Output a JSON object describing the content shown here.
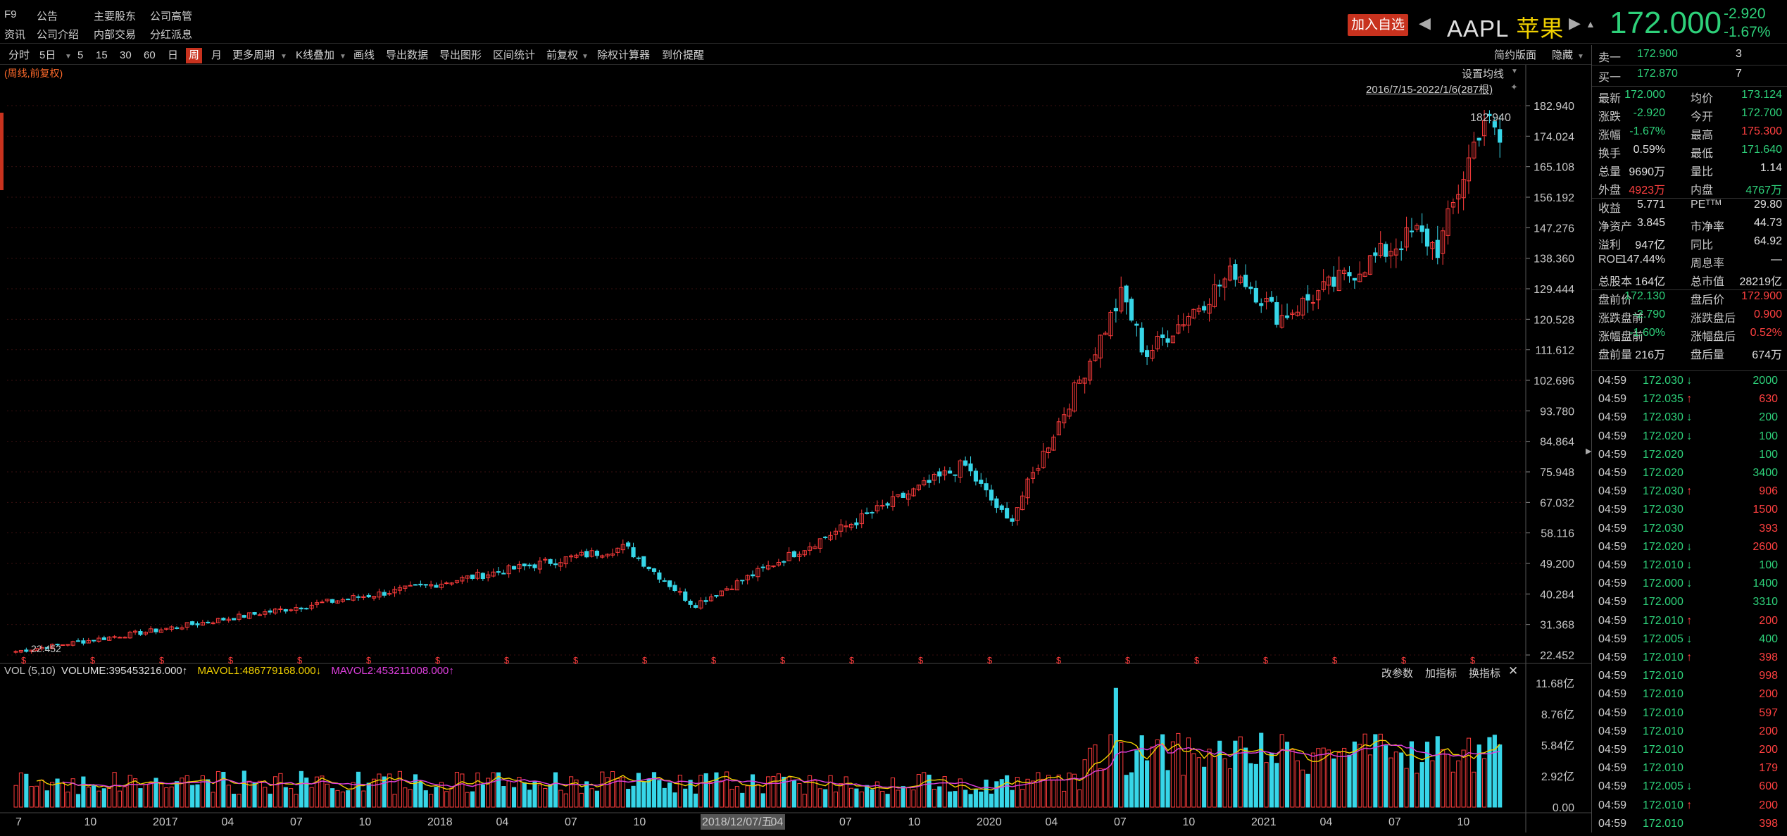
{
  "topbar": {
    "row1": [
      "F9",
      "公告",
      "主要股东",
      "公司高管"
    ],
    "row2": [
      "资讯",
      "公司介绍",
      "内部交易",
      "分红派息"
    ],
    "add_watch": "加入自选",
    "ticker": "AAPL",
    "name_cn": "苹果",
    "price": "172.000",
    "change": "-2.920",
    "change_pct": "-1.67%"
  },
  "toolbar": {
    "items": [
      "分时",
      "5日",
      "5",
      "15",
      "30",
      "60",
      "日",
      "周",
      "月",
      "更多周期",
      "K线叠加",
      "画线",
      "导出数据",
      "导出图形",
      "区间统计",
      "前复权",
      "除权计算器",
      "到价提醒"
    ],
    "active": "周",
    "right": [
      "简约版面",
      "隐藏"
    ]
  },
  "chart": {
    "mode_label": "(周线,前复权)",
    "ma_button": "设置均线",
    "range_label": "2016/7/15-2022/1/6(287根)",
    "high_label": "182.940",
    "low_label": "22.452",
    "y_ticks": [
      "182.940",
      "174.024",
      "165.108",
      "156.192",
      "147.276",
      "138.360",
      "129.444",
      "120.528",
      "111.612",
      "102.696",
      "93.780",
      "84.864",
      "75.948",
      "67.032",
      "58.116",
      "49.200",
      "40.284",
      "31.368",
      "22.452"
    ],
    "vol_legend": {
      "name": "VOL (5,10)",
      "volume": "VOLUME:395453216.000↑",
      "mavol1": "MAVOL1:486779168.000↓",
      "mavol2": "MAVOL2:453211008.000↑"
    },
    "vol_buttons": [
      "改参数",
      "加指标",
      "换指标",
      "✕"
    ],
    "vol_y_ticks": [
      "11.68亿",
      "8.76亿",
      "5.84亿",
      "2.92亿",
      "0.00"
    ],
    "x_labels": [
      "7",
      "10",
      "2017",
      "04",
      "07",
      "10",
      "2018",
      "04",
      "07",
      "10",
      "2018/12/07/五",
      "04",
      "07",
      "10",
      "2020",
      "04",
      "07",
      "10",
      "2021",
      "04",
      "07",
      "10"
    ],
    "dividend_marker": "$",
    "colors": {
      "up": "#ff3c3c",
      "down": "#37d6e8",
      "mavol1": "#f0d000",
      "mavol2": "#e040e0",
      "grid": "#3a1010"
    }
  },
  "chart_data": {
    "type": "candlestick",
    "title": "AAPL 苹果 (周线,前复权)",
    "range": "2016/7/15-2022/1/6",
    "bars": 287,
    "ylim": [
      22.452,
      182.94
    ],
    "anchor_prices": [
      {
        "date": "2016-07",
        "close": 23.5
      },
      {
        "date": "2017-01",
        "close": 29.5
      },
      {
        "date": "2018-01",
        "close": 42.5
      },
      {
        "date": "2018-10",
        "close": 54.0
      },
      {
        "date": "2019-01",
        "close": 37.0
      },
      {
        "date": "2020-01",
        "close": 78.0
      },
      {
        "date": "2020-03",
        "close": 61.0
      },
      {
        "date": "2020-08",
        "close": 128.0
      },
      {
        "date": "2020-09",
        "close": 110.0
      },
      {
        "date": "2021-01",
        "close": 135.0
      },
      {
        "date": "2021-03",
        "close": 121.0
      },
      {
        "date": "2021-09",
        "close": 146.0
      },
      {
        "date": "2021-10",
        "close": 141.0
      },
      {
        "date": "2021-12",
        "close": 180.0
      },
      {
        "date": "2022-01",
        "close": 172.0
      }
    ],
    "volume_ylim": [
      0,
      11.68
    ],
    "volume_unit": "亿"
  },
  "quote": {
    "sell1": {
      "label": "卖一",
      "price": "172.900",
      "qty": "3"
    },
    "buy1": {
      "label": "买一",
      "price": "172.870",
      "qty": "7"
    },
    "rows": [
      [
        {
          "l": "最新",
          "v": "172.000",
          "c": "green"
        },
        {
          "l": "均价",
          "v": "173.124",
          "c": "green"
        }
      ],
      [
        {
          "l": "涨跌",
          "v": "-2.920",
          "c": "green"
        },
        {
          "l": "今开",
          "v": "172.700",
          "c": "green"
        }
      ],
      [
        {
          "l": "涨幅",
          "v": "-1.67%",
          "c": "green"
        },
        {
          "l": "最高",
          "v": "175.300",
          "c": "red"
        }
      ],
      [
        {
          "l": "换手",
          "v": "0.59%",
          "c": "white"
        },
        {
          "l": "最低",
          "v": "171.640",
          "c": "green"
        }
      ],
      [
        {
          "l": "总量",
          "v": "9690万",
          "c": "white"
        },
        {
          "l": "量比",
          "v": "1.14",
          "c": "white"
        }
      ],
      [
        {
          "l": "外盘",
          "v": "4923万",
          "c": "red"
        },
        {
          "l": "内盘",
          "v": "4767万",
          "c": "green"
        }
      ],
      [
        {
          "l": "收益",
          "v": "5.771",
          "c": "white"
        },
        {
          "l": "PEᵀᵀᴹ",
          "v": "29.80",
          "c": "white"
        }
      ],
      [
        {
          "l": "净资产",
          "v": "3.845",
          "c": "white"
        },
        {
          "l": "市净率",
          "v": "44.73",
          "c": "white"
        }
      ],
      [
        {
          "l": "溢利",
          "v": "947亿",
          "c": "white"
        },
        {
          "l": "同比",
          "v": "64.92",
          "c": "white"
        }
      ],
      [
        {
          "l": "ROE",
          "v": "147.44%",
          "c": "white"
        },
        {
          "l": "周息率",
          "v": "—",
          "c": "white"
        }
      ],
      [
        {
          "l": "总股本",
          "v": "164亿",
          "c": "white"
        },
        {
          "l": "总市值",
          "v": "28219亿",
          "c": "white"
        }
      ],
      [
        {
          "l": "盘前价",
          "v": "172.130",
          "c": "green"
        },
        {
          "l": "盘后价",
          "v": "172.900",
          "c": "red"
        }
      ],
      [
        {
          "l": "涨跌盘前",
          "v": "-2.790",
          "c": "green"
        },
        {
          "l": "涨跌盘后",
          "v": "0.900",
          "c": "red"
        }
      ],
      [
        {
          "l": "涨幅盘前",
          "v": "-1.60%",
          "c": "green"
        },
        {
          "l": "涨幅盘后",
          "v": "0.52%",
          "c": "red"
        }
      ],
      [
        {
          "l": "盘前量",
          "v": "216万",
          "c": "white"
        },
        {
          "l": "盘后量",
          "v": "674万",
          "c": "white"
        }
      ]
    ]
  },
  "ticks": [
    {
      "t": "04:59",
      "p": "172.030",
      "a": "↓",
      "v": "2000",
      "c": "green"
    },
    {
      "t": "04:59",
      "p": "172.035",
      "a": "↑",
      "v": "630",
      "c": "red"
    },
    {
      "t": "04:59",
      "p": "172.030",
      "a": "↓",
      "v": "200",
      "c": "green"
    },
    {
      "t": "04:59",
      "p": "172.020",
      "a": "↓",
      "v": "100",
      "c": "green"
    },
    {
      "t": "04:59",
      "p": "172.020",
      "a": "",
      "v": "100",
      "c": "green"
    },
    {
      "t": "04:59",
      "p": "172.020",
      "a": "",
      "v": "3400",
      "c": "green"
    },
    {
      "t": "04:59",
      "p": "172.030",
      "a": "↑",
      "v": "906",
      "c": "red"
    },
    {
      "t": "04:59",
      "p": "172.030",
      "a": "",
      "v": "1500",
      "c": "red"
    },
    {
      "t": "04:59",
      "p": "172.030",
      "a": "",
      "v": "393",
      "c": "red"
    },
    {
      "t": "04:59",
      "p": "172.020",
      "a": "↓",
      "v": "2600",
      "c": "red"
    },
    {
      "t": "04:59",
      "p": "172.010",
      "a": "↓",
      "v": "100",
      "c": "green"
    },
    {
      "t": "04:59",
      "p": "172.000",
      "a": "↓",
      "v": "1400",
      "c": "green"
    },
    {
      "t": "04:59",
      "p": "172.000",
      "a": "",
      "v": "3310",
      "c": "green"
    },
    {
      "t": "04:59",
      "p": "172.010",
      "a": "↑",
      "v": "200",
      "c": "red"
    },
    {
      "t": "04:59",
      "p": "172.005",
      "a": "↓",
      "v": "400",
      "c": "green"
    },
    {
      "t": "04:59",
      "p": "172.010",
      "a": "↑",
      "v": "398",
      "c": "red"
    },
    {
      "t": "04:59",
      "p": "172.010",
      "a": "",
      "v": "998",
      "c": "red"
    },
    {
      "t": "04:59",
      "p": "172.010",
      "a": "",
      "v": "200",
      "c": "red"
    },
    {
      "t": "04:59",
      "p": "172.010",
      "a": "",
      "v": "597",
      "c": "red"
    },
    {
      "t": "04:59",
      "p": "172.010",
      "a": "",
      "v": "200",
      "c": "red"
    },
    {
      "t": "04:59",
      "p": "172.010",
      "a": "",
      "v": "200",
      "c": "red"
    },
    {
      "t": "04:59",
      "p": "172.010",
      "a": "",
      "v": "179",
      "c": "red"
    },
    {
      "t": "04:59",
      "p": "172.005",
      "a": "↓",
      "v": "600",
      "c": "red"
    },
    {
      "t": "04:59",
      "p": "172.010",
      "a": "↑",
      "v": "200",
      "c": "red"
    },
    {
      "t": "04:59",
      "p": "172.010",
      "a": "",
      "v": "398",
      "c": "red"
    }
  ]
}
